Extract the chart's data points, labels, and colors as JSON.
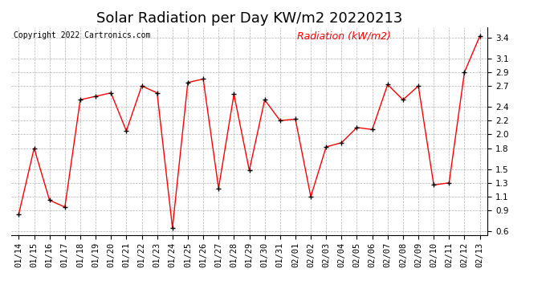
{
  "title": "Solar Radiation per Day KW/m2 20220213",
  "copyright": "Copyright 2022 Cartronics.com",
  "legend_label": "Radiation (kW/m2)",
  "dates": [
    "01/14",
    "01/15",
    "01/16",
    "01/17",
    "01/18",
    "01/19",
    "01/20",
    "01/21",
    "01/22",
    "01/23",
    "01/24",
    "01/25",
    "01/26",
    "01/27",
    "01/28",
    "01/29",
    "01/30",
    "01/31",
    "02/01",
    "02/02",
    "02/03",
    "02/04",
    "02/05",
    "02/06",
    "02/07",
    "02/08",
    "02/09",
    "02/10",
    "02/11",
    "02/12",
    "02/13"
  ],
  "values": [
    0.85,
    1.8,
    1.05,
    0.95,
    2.5,
    2.55,
    2.6,
    2.05,
    2.7,
    2.6,
    0.65,
    2.75,
    2.8,
    1.22,
    2.58,
    1.48,
    2.5,
    2.2,
    2.22,
    1.1,
    1.82,
    1.88,
    2.1,
    2.07,
    2.72,
    2.5,
    2.7,
    1.27,
    1.3,
    2.9,
    3.42
  ],
  "line_color": "red",
  "marker_color": "black",
  "bg_color": "#ffffff",
  "grid_color": "#aaaaaa",
  "ylim": [
    0.55,
    3.55
  ],
  "yticks": [
    0.6,
    0.9,
    1.1,
    1.3,
    1.5,
    1.8,
    2.0,
    2.2,
    2.4,
    2.7,
    2.9,
    3.1,
    3.4
  ],
  "title_fontsize": 13,
  "copyright_fontsize": 7,
  "legend_fontsize": 9,
  "tick_fontsize": 7.5
}
